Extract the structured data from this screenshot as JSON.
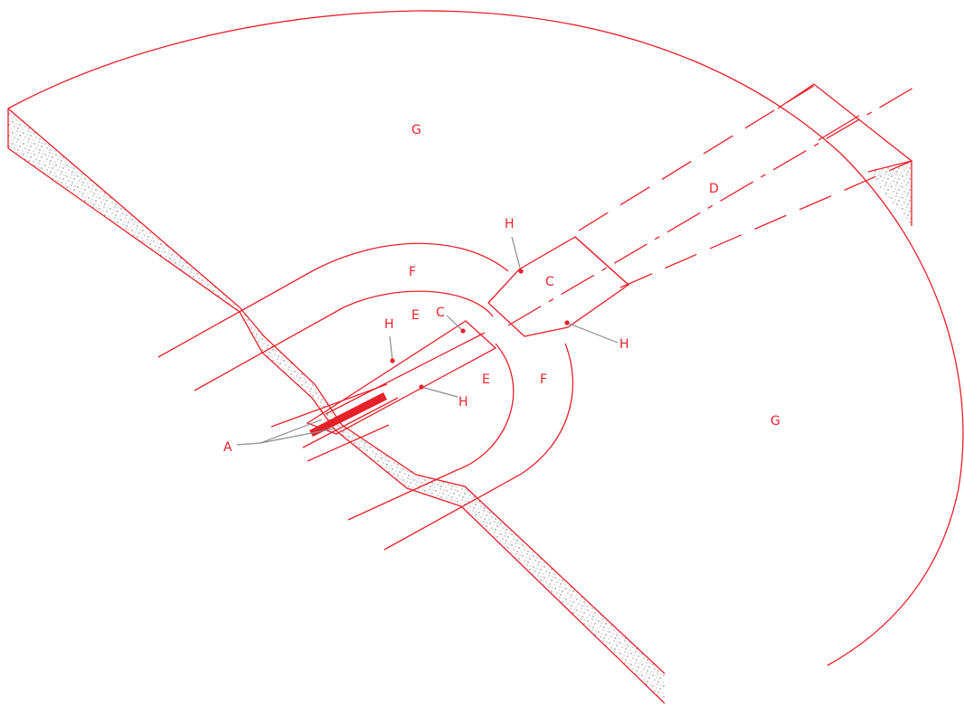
{
  "labels": {
    "g_top": "G",
    "g_right": "G",
    "d": "D",
    "h_upper": "H",
    "c_right": "C",
    "h_right": "H",
    "f_top": "F",
    "e_top": "E",
    "c_left": "C",
    "h_left_upper": "H",
    "e_right": "E",
    "f_right": "F",
    "h_left_lower": "H",
    "a": "A"
  },
  "colors": {
    "line": "#e8202a",
    "leader": "#8c8c8c",
    "background": "#ffffff"
  }
}
